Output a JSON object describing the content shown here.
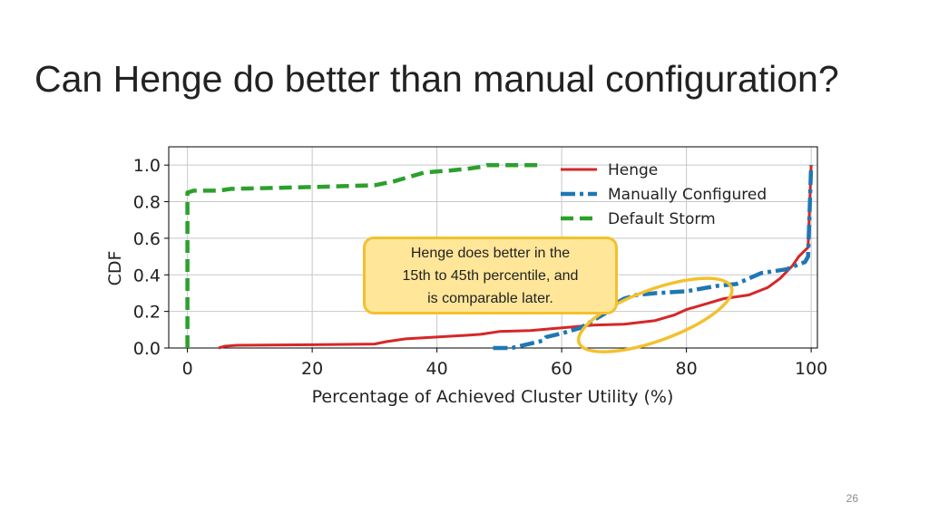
{
  "slide": {
    "title": "Can Henge do better than manual configuration?",
    "page_number": "26"
  },
  "callout": {
    "text_lines": [
      "Henge does better in the",
      "15th to 45th percentile, and",
      "is comparable later."
    ]
  },
  "chart_data": {
    "type": "line",
    "xlabel": "Percentage of Achieved Cluster Utility (%)",
    "ylabel": "CDF",
    "xlim": [
      -3,
      101
    ],
    "ylim": [
      0,
      1.1
    ],
    "x_ticks": [
      0,
      20,
      40,
      60,
      80,
      100
    ],
    "x_tick_labels": [
      "0",
      "20",
      "40",
      "60",
      "80",
      "100"
    ],
    "y_ticks": [
      0.0,
      0.2,
      0.4,
      0.6,
      0.8,
      1.0
    ],
    "y_tick_labels": [
      "0.0",
      "0.2",
      "0.4",
      "0.6",
      "0.8",
      "1.0"
    ],
    "grid": true,
    "legend_position": "top-right",
    "series": [
      {
        "name": "Henge",
        "color": "#d62728",
        "style": "solid",
        "points": [
          [
            5,
            0
          ],
          [
            6,
            0.01
          ],
          [
            8,
            0.015
          ],
          [
            20,
            0.018
          ],
          [
            30,
            0.022
          ],
          [
            32,
            0.035
          ],
          [
            35,
            0.05
          ],
          [
            40,
            0.06
          ],
          [
            45,
            0.07
          ],
          [
            47,
            0.075
          ],
          [
            50,
            0.09
          ],
          [
            55,
            0.095
          ],
          [
            60,
            0.11
          ],
          [
            65,
            0.125
          ],
          [
            70,
            0.13
          ],
          [
            75,
            0.15
          ],
          [
            78,
            0.18
          ],
          [
            80,
            0.21
          ],
          [
            83,
            0.24
          ],
          [
            86,
            0.27
          ],
          [
            90,
            0.29
          ],
          [
            93,
            0.33
          ],
          [
            95,
            0.38
          ],
          [
            97,
            0.45
          ],
          [
            98,
            0.5
          ],
          [
            99.5,
            0.55
          ],
          [
            100,
            1.0
          ]
        ]
      },
      {
        "name": "Manually Configured",
        "color": "#1f77b4",
        "style": "dashdot",
        "points": [
          [
            49,
            0
          ],
          [
            52,
            0
          ],
          [
            57,
            0.04
          ],
          [
            57.5,
            0.06
          ],
          [
            60,
            0.08
          ],
          [
            63,
            0.11
          ],
          [
            65,
            0.15
          ],
          [
            67,
            0.19
          ],
          [
            68,
            0.23
          ],
          [
            70,
            0.27
          ],
          [
            72,
            0.29
          ],
          [
            75,
            0.3
          ],
          [
            80,
            0.31
          ],
          [
            85,
            0.34
          ],
          [
            88,
            0.35
          ],
          [
            90,
            0.38
          ],
          [
            92,
            0.41
          ],
          [
            96,
            0.43
          ],
          [
            99,
            0.47
          ],
          [
            99.5,
            0.5
          ],
          [
            100,
            1.0
          ]
        ]
      },
      {
        "name": "Default Storm",
        "color": "#2ca02c",
        "style": "dashed",
        "points": [
          [
            0,
            0
          ],
          [
            0,
            0.85
          ],
          [
            1,
            0.86
          ],
          [
            5,
            0.86
          ],
          [
            7,
            0.87
          ],
          [
            20,
            0.88
          ],
          [
            30,
            0.89
          ],
          [
            33,
            0.91
          ],
          [
            35,
            0.93
          ],
          [
            38,
            0.96
          ],
          [
            42,
            0.97
          ],
          [
            45,
            0.98
          ],
          [
            47,
            0.99
          ],
          [
            48,
            1.0
          ],
          [
            57,
            1.0
          ]
        ]
      }
    ],
    "highlight_ellipse": {
      "cx": 75,
      "cy": 0.18,
      "rx": 13,
      "ry": 0.14,
      "rotation_deg": -20,
      "color": "#f2c12e"
    }
  }
}
